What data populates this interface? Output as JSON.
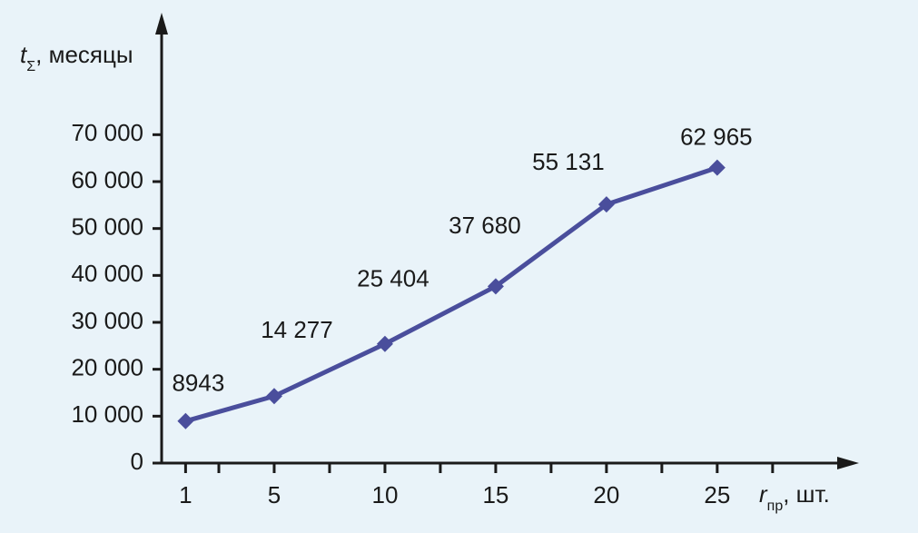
{
  "chart_data": {
    "type": "line",
    "ylabel_symbol": "t",
    "ylabel_subscript": "Σ",
    "ylabel_unit": ", месяцы",
    "xlabel_symbol": "r",
    "xlabel_subscript": "пр",
    "xlabel_unit": ", шт.",
    "x": [
      1,
      5,
      10,
      15,
      20,
      25
    ],
    "series": [
      {
        "name": "tΣ",
        "color": "#4a4e9c",
        "values": [
          8943,
          14277,
          25404,
          37680,
          55131,
          62965
        ],
        "value_labels": [
          "8943",
          "14 277",
          "25 404",
          "37 680",
          "55 131",
          "62 965"
        ]
      }
    ],
    "xlim": [
      0,
      31.4
    ],
    "xticks": [
      1,
      5,
      10,
      15,
      20,
      25
    ],
    "xminorticks": [
      2.5,
      7.5,
      12.5,
      17.5,
      22.5,
      27.5
    ],
    "ylim": [
      0,
      96000
    ],
    "yticks": [
      0,
      {
        "value": 10000,
        "label": "10 000"
      },
      {
        "value": 20000,
        "label": "20 000"
      },
      {
        "value": 30000,
        "label": "30 000"
      },
      {
        "value": 40000,
        "label": "40 000"
      },
      {
        "value": 50000,
        "label": "50 000"
      },
      {
        "value": 60000,
        "label": "60 000"
      },
      {
        "value": 70000,
        "label": "70 000"
      }
    ]
  }
}
